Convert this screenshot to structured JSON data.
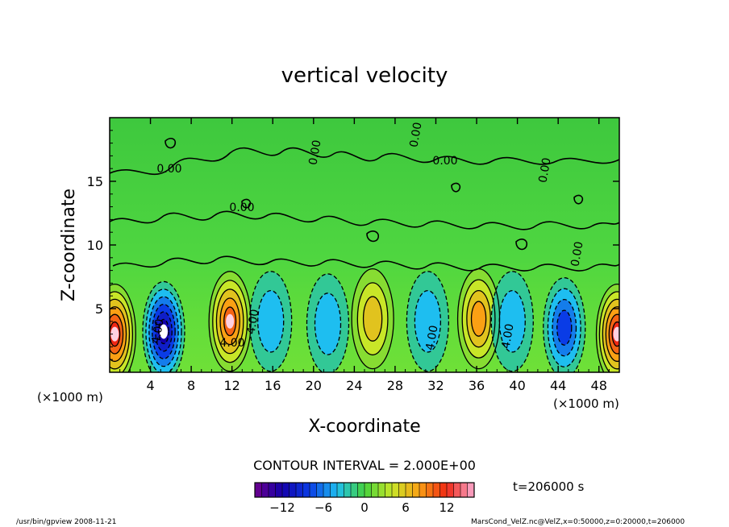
{
  "chart_data": {
    "type": "heatmap",
    "title": "vertical velocity",
    "xlabel": "X-coordinate",
    "ylabel": "Z-coordinate",
    "x_unit": "(×1000 m)",
    "y_unit": "(×1000 m)",
    "xlim": [
      0,
      50
    ],
    "ylim": [
      0,
      20
    ],
    "x_ticks": [
      4,
      8,
      12,
      16,
      20,
      24,
      28,
      32,
      36,
      40,
      44,
      48
    ],
    "y_ticks": [
      5,
      10,
      15
    ],
    "contour_interval": "CONTOUR INTERVAL = 2.000E+00",
    "contour_labels": [
      "0.00",
      "0.00",
      "0.00",
      "0.00",
      "0.00",
      "0.00",
      "0.00",
      "4.00",
      "4.00",
      "4.00",
      "4.00",
      "4.00"
    ],
    "time_label": "t=206000 s",
    "colorbar": {
      "min": -16,
      "max": 16,
      "ticks": [
        -12,
        -6,
        0,
        6,
        12
      ]
    },
    "cells": [
      {
        "x": 0.5,
        "z": 3.0,
        "w": 12
      },
      {
        "x": 5.3,
        "z": 3.2,
        "w": -12
      },
      {
        "x": 11.8,
        "z": 4.0,
        "w": 11
      },
      {
        "x": 15.8,
        "z": 4.0,
        "w": -5
      },
      {
        "x": 21.4,
        "z": 3.8,
        "w": -4
      },
      {
        "x": 25.8,
        "z": 4.2,
        "w": 7
      },
      {
        "x": 31.2,
        "z": 4.0,
        "w": -4
      },
      {
        "x": 36.2,
        "z": 4.2,
        "w": 8
      },
      {
        "x": 39.5,
        "z": 4.0,
        "w": -4
      },
      {
        "x": 44.6,
        "z": 3.5,
        "w": -8
      },
      {
        "x": 49.8,
        "z": 3.0,
        "w": 13
      }
    ]
  },
  "footer": {
    "left": "/usr/bin/gpview   2008-11-21",
    "right": "MarsCond_VelZ.nc@VelZ,x=0:50000,z=0:20000,t=206000"
  }
}
